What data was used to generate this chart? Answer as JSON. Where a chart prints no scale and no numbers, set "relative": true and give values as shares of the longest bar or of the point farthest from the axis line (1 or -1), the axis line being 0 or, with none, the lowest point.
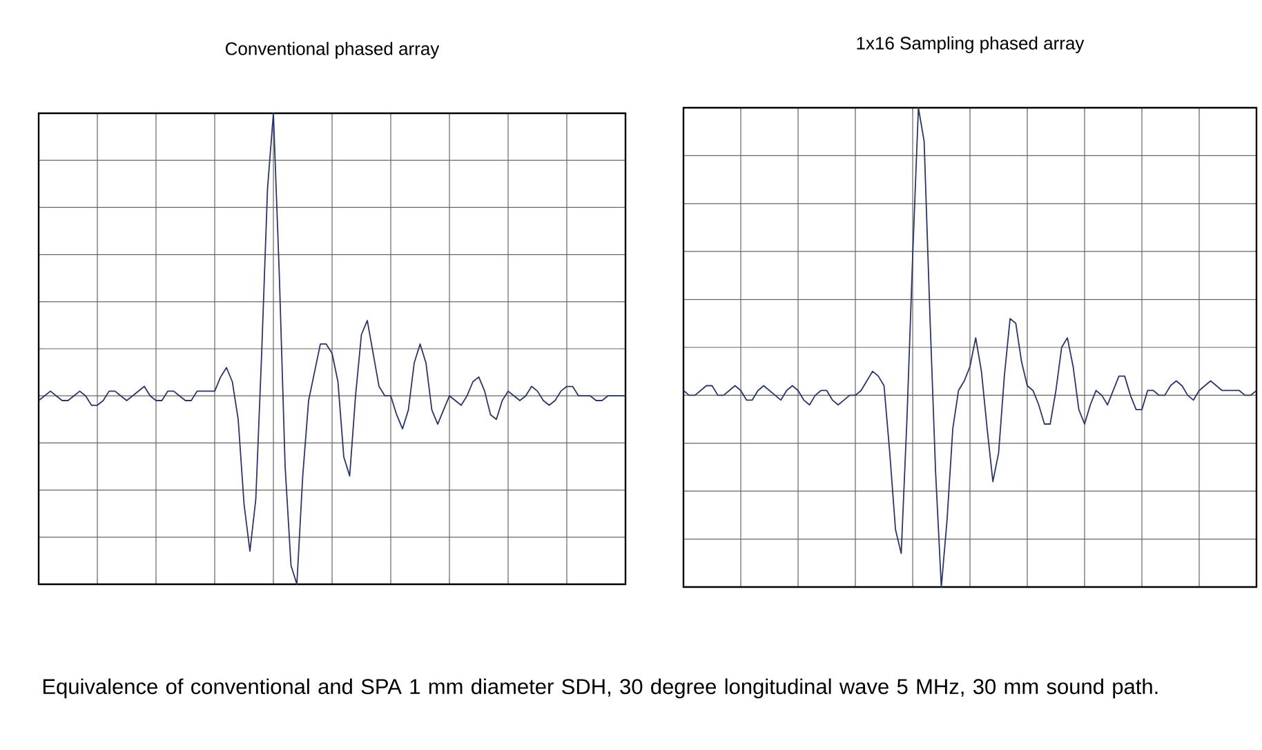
{
  "chart_data": [
    {
      "type": "line",
      "title": "Conventional phased array",
      "relative": true,
      "grid": true,
      "color": "#2b3566",
      "annotations": [
        "Equivalence of conventional and SPA 1 mm diameter SDH, 30 degree longitudinal wave 5 MHz, 30 mm sound path."
      ],
      "categories": [
        null,
        null,
        null,
        null,
        null,
        null,
        null,
        null,
        null,
        null,
        null,
        null,
        null,
        null,
        null,
        null,
        null,
        null,
        null,
        null,
        null,
        null,
        null,
        null,
        null,
        null,
        null,
        null,
        null,
        null,
        null,
        null,
        null,
        null,
        null,
        null,
        null,
        null,
        null,
        null,
        null,
        null,
        null,
        null,
        null,
        null,
        null,
        null,
        null,
        null,
        null,
        null,
        null,
        null,
        null,
        null,
        null,
        null,
        null,
        null,
        null,
        null,
        null,
        null,
        null,
        null,
        null,
        null,
        null,
        null,
        null,
        null,
        null,
        null,
        null,
        null,
        null,
        null,
        null,
        null,
        null,
        null,
        null,
        null,
        null,
        null,
        null,
        null,
        null,
        null,
        null,
        null,
        null,
        null,
        null,
        null,
        null,
        null,
        null,
        null,
        null
      ],
      "values": [
        0.39,
        0.4,
        0.41,
        0.4,
        0.39,
        0.39,
        0.4,
        0.41,
        0.4,
        0.38,
        0.38,
        0.39,
        0.41,
        0.41,
        0.4,
        0.39,
        0.4,
        0.41,
        0.42,
        0.4,
        0.39,
        0.39,
        0.41,
        0.41,
        0.4,
        0.39,
        0.39,
        0.41,
        0.41,
        0.41,
        0.41,
        0.44,
        0.46,
        0.43,
        0.35,
        0.17,
        0.07,
        0.18,
        0.49,
        0.84,
        1.0,
        0.66,
        0.25,
        0.04,
        0.0,
        0.23,
        0.39,
        0.45,
        0.51,
        0.51,
        0.49,
        0.43,
        0.27,
        0.23,
        0.4,
        0.53,
        0.56,
        0.49,
        0.42,
        0.4,
        0.4,
        0.36,
        0.33,
        0.37,
        0.47,
        0.51,
        0.47,
        0.37,
        0.34,
        0.37,
        0.4,
        0.39,
        0.38,
        0.4,
        0.43,
        0.44,
        0.41,
        0.36,
        0.35,
        0.39,
        0.41,
        0.4,
        0.39,
        0.4,
        0.42,
        0.41,
        0.39,
        0.38,
        0.39,
        0.41,
        0.42,
        0.42,
        0.4,
        0.4,
        0.4,
        0.39,
        0.39,
        0.4,
        0.4,
        0.4,
        0.4
      ]
    },
    {
      "type": "line",
      "title": "1x16 Sampling phased array",
      "relative": true,
      "grid": true,
      "color": "#2b3566",
      "categories": [
        null,
        null,
        null,
        null,
        null,
        null,
        null,
        null,
        null,
        null,
        null,
        null,
        null,
        null,
        null,
        null,
        null,
        null,
        null,
        null,
        null,
        null,
        null,
        null,
        null,
        null,
        null,
        null,
        null,
        null,
        null,
        null,
        null,
        null,
        null,
        null,
        null,
        null,
        null,
        null,
        null,
        null,
        null,
        null,
        null,
        null,
        null,
        null,
        null,
        null,
        null,
        null,
        null,
        null,
        null,
        null,
        null,
        null,
        null,
        null,
        null,
        null,
        null,
        null,
        null,
        null,
        null,
        null,
        null,
        null,
        null,
        null,
        null,
        null,
        null,
        null,
        null,
        null,
        null,
        null,
        null,
        null,
        null,
        null,
        null,
        null,
        null,
        null,
        null,
        null,
        null,
        null,
        null,
        null,
        null,
        null,
        null,
        null,
        null,
        null,
        null
      ],
      "values": [
        0.41,
        0.4,
        0.4,
        0.41,
        0.42,
        0.42,
        0.4,
        0.4,
        0.41,
        0.42,
        0.41,
        0.39,
        0.39,
        0.41,
        0.42,
        0.41,
        0.4,
        0.39,
        0.41,
        0.42,
        0.41,
        0.39,
        0.38,
        0.4,
        0.41,
        0.41,
        0.39,
        0.38,
        0.39,
        0.4,
        0.4,
        0.41,
        0.43,
        0.45,
        0.44,
        0.42,
        0.28,
        0.12,
        0.07,
        0.35,
        0.69,
        1.0,
        0.93,
        0.57,
        0.24,
        0.0,
        0.14,
        0.33,
        0.41,
        0.43,
        0.46,
        0.52,
        0.45,
        0.33,
        0.22,
        0.28,
        0.44,
        0.56,
        0.55,
        0.47,
        0.42,
        0.41,
        0.38,
        0.34,
        0.34,
        0.41,
        0.5,
        0.52,
        0.46,
        0.37,
        0.34,
        0.38,
        0.41,
        0.4,
        0.38,
        0.41,
        0.44,
        0.44,
        0.4,
        0.37,
        0.37,
        0.41,
        0.41,
        0.4,
        0.4,
        0.42,
        0.43,
        0.42,
        0.4,
        0.39,
        0.41,
        0.42,
        0.43,
        0.42,
        0.41,
        0.41,
        0.41,
        0.41,
        0.4,
        0.4,
        0.41
      ]
    }
  ]
}
